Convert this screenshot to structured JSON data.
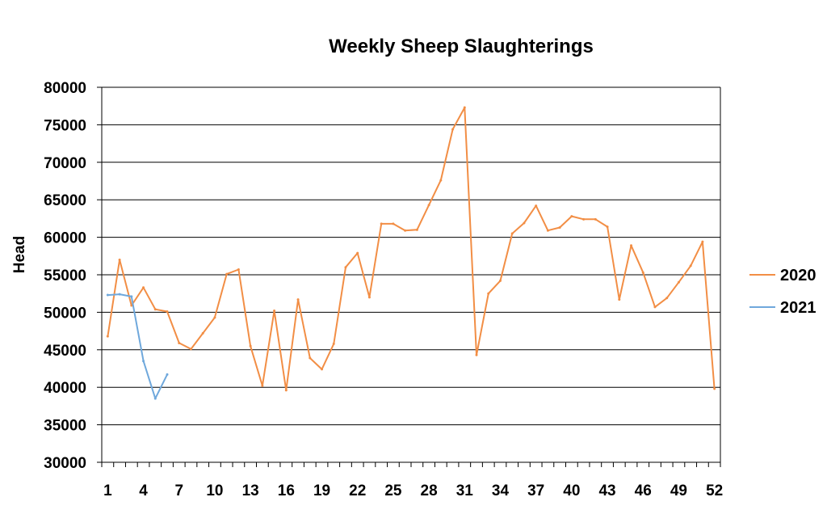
{
  "chart_data": {
    "type": "line",
    "title": "Weekly Sheep Slaughterings",
    "xlabel": "",
    "ylabel": "Head",
    "ylim": [
      30000,
      80000
    ],
    "ytick_step": 5000,
    "yticks": [
      "30000",
      "35000",
      "40000",
      "45000",
      "50000",
      "55000",
      "60000",
      "65000",
      "70000",
      "75000",
      "80000"
    ],
    "x_categories": [
      1,
      2,
      3,
      4,
      5,
      6,
      7,
      8,
      9,
      10,
      11,
      12,
      13,
      14,
      15,
      16,
      17,
      18,
      19,
      20,
      21,
      22,
      23,
      24,
      25,
      26,
      27,
      28,
      29,
      30,
      31,
      32,
      33,
      34,
      35,
      36,
      37,
      38,
      39,
      40,
      41,
      42,
      43,
      44,
      45,
      46,
      47,
      48,
      49,
      50,
      51,
      52
    ],
    "xticks": [
      "1",
      "4",
      "7",
      "10",
      "13",
      "16",
      "19",
      "22",
      "25",
      "28",
      "31",
      "34",
      "37",
      "40",
      "43",
      "46",
      "49",
      "52"
    ],
    "grid": true,
    "legend_position": "right",
    "series": [
      {
        "name": "2020",
        "color": "#F28E45",
        "values": [
          46800,
          57000,
          50900,
          53300,
          50400,
          50100,
          45900,
          45100,
          47200,
          49300,
          55100,
          55700,
          45500,
          40200,
          50200,
          39600,
          51700,
          43900,
          42400,
          45800,
          56000,
          57900,
          52000,
          61800,
          61800,
          60900,
          61000,
          64300,
          67600,
          74400,
          77300,
          44300,
          52500,
          54200,
          60500,
          61900,
          64200,
          60900,
          61300,
          62800,
          62400,
          62400,
          61400,
          51700,
          58900,
          55300,
          50700,
          51900,
          54000,
          56200,
          59400,
          39800
        ]
      },
      {
        "name": "2021",
        "color": "#6FA8DC",
        "values": [
          52300,
          52400,
          52100,
          43500,
          38500,
          41700
        ]
      }
    ]
  }
}
